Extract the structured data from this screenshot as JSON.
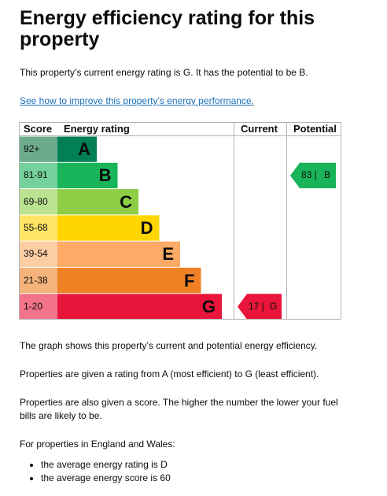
{
  "title": "Energy efficiency rating for this property",
  "summary": "This property’s current energy rating is G. It has the potential to be B.",
  "improve_link": "See how to improve this property’s energy performance.",
  "chart_data": {
    "type": "table",
    "columns": [
      "Score",
      "Energy rating",
      "Current",
      "Potential"
    ],
    "bands": [
      {
        "score": "92+",
        "letter": "A",
        "color": "#008054",
        "score_bg": "#6cac8c"
      },
      {
        "score": "81-91",
        "letter": "B",
        "color": "#19b459",
        "score_bg": "#75d19b"
      },
      {
        "score": "69-80",
        "letter": "C",
        "color": "#8dce46",
        "score_bg": "#bbe290"
      },
      {
        "score": "55-68",
        "letter": "D",
        "color": "#ffd500",
        "score_bg": "#ffe566"
      },
      {
        "score": "39-54",
        "letter": "E",
        "color": "#fcaa65",
        "score_bg": "#fdcda3"
      },
      {
        "score": "21-38",
        "letter": "F",
        "color": "#ef8023",
        "score_bg": "#f5b37b"
      },
      {
        "score": "1-20",
        "letter": "G",
        "color": "#e9153b",
        "score_bg": "#f2738a"
      }
    ],
    "current": {
      "score": "17",
      "band": "G",
      "label_score": "17 |",
      "label_band": "G",
      "color": "#e9153b"
    },
    "potential": {
      "score": "83",
      "band": "B",
      "label_score": "83 |",
      "label_band": "B",
      "color": "#19b459"
    }
  },
  "paragraphs": [
    "The graph shows this property’s current and potential energy efficiency.",
    "Properties are given a rating from A (most efficient) to G (least efficient).",
    "Properties are also given a score. The higher the number the lower your fuel bills are likely to be.",
    "For properties in England and Wales:"
  ],
  "bullets": [
    "the average energy rating is D",
    "the average energy score is 60"
  ]
}
